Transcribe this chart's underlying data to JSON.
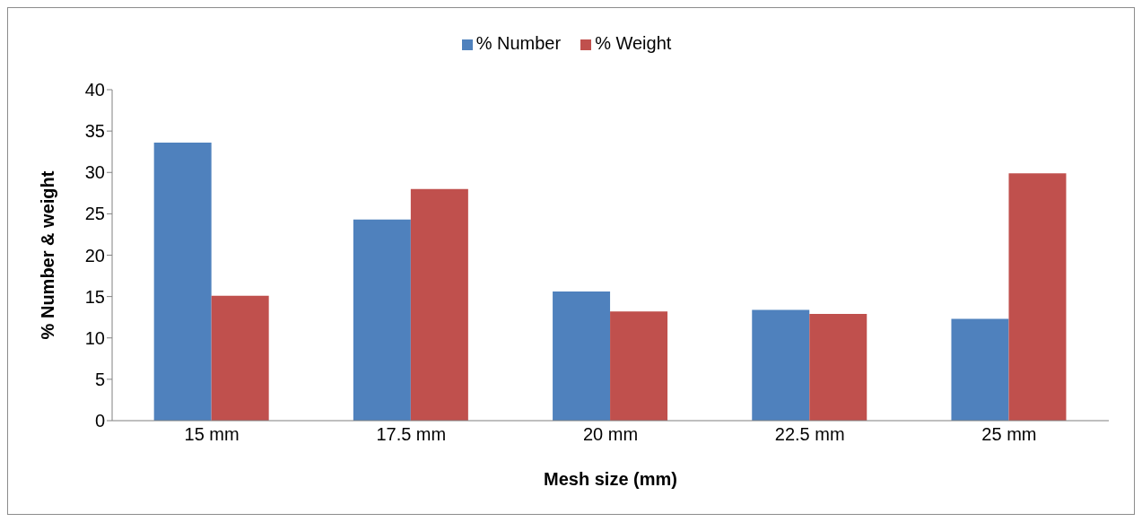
{
  "chart_data": {
    "type": "bar",
    "xlabel": "Mesh size (mm)",
    "ylabel": "% Number & weight",
    "categories": [
      "15 mm",
      "17.5 mm",
      "20 mm",
      "22.5 mm",
      "25 mm"
    ],
    "series": [
      {
        "name": "% Number",
        "color": "#4f81bd",
        "values": [
          33.6,
          24.3,
          15.6,
          13.4,
          12.3
        ]
      },
      {
        "name": "% Weight",
        "color": "#c0504d",
        "values": [
          15.1,
          28.0,
          13.2,
          12.9,
          29.9
        ]
      }
    ],
    "ylim": [
      0,
      40
    ],
    "yticks": [
      0,
      5,
      10,
      15,
      20,
      25,
      30,
      35,
      40
    ],
    "grid": false,
    "legend": "top"
  }
}
